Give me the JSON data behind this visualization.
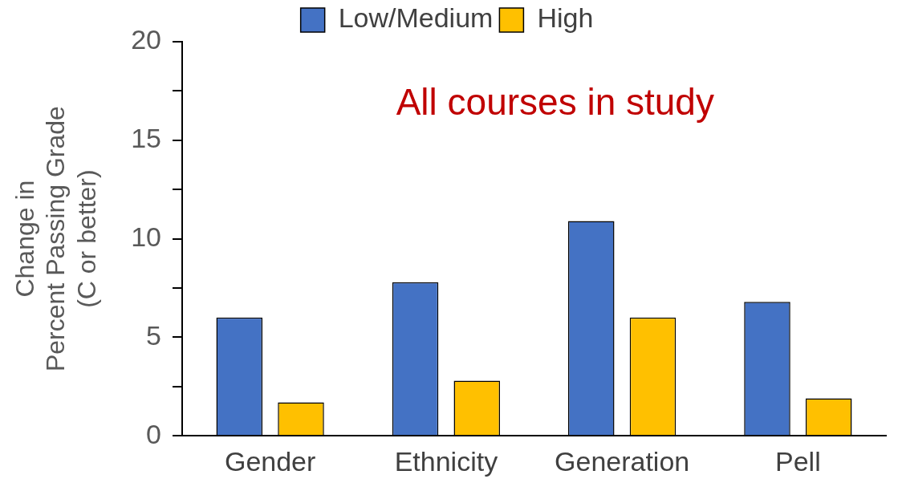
{
  "chart_data": {
    "type": "bar",
    "ylabel": "Change in\nPercent Passing Grade\n(C or better)",
    "categories": [
      "Gender",
      "Ethnicity",
      "Generation",
      "Pell"
    ],
    "series": [
      {
        "name": "Low/Medium",
        "color": "#4472c4",
        "values": [
          6,
          7.8,
          10.9,
          6.8
        ]
      },
      {
        "name": "High",
        "color": "#ffc000",
        "values": [
          1.7,
          2.8,
          6.0,
          1.9
        ]
      }
    ],
    "ylim": [
      0,
      20
    ],
    "yticks": [
      0,
      {
        "value": 2.5,
        "label": null
      },
      5,
      {
        "value": 7.5,
        "label": null
      },
      10,
      {
        "value": 12.5,
        "label": null
      },
      15,
      {
        "value": 17.5,
        "label": null
      },
      20
    ],
    "grid": false,
    "legend": "top",
    "annotations": [
      "All courses in study"
    ]
  }
}
